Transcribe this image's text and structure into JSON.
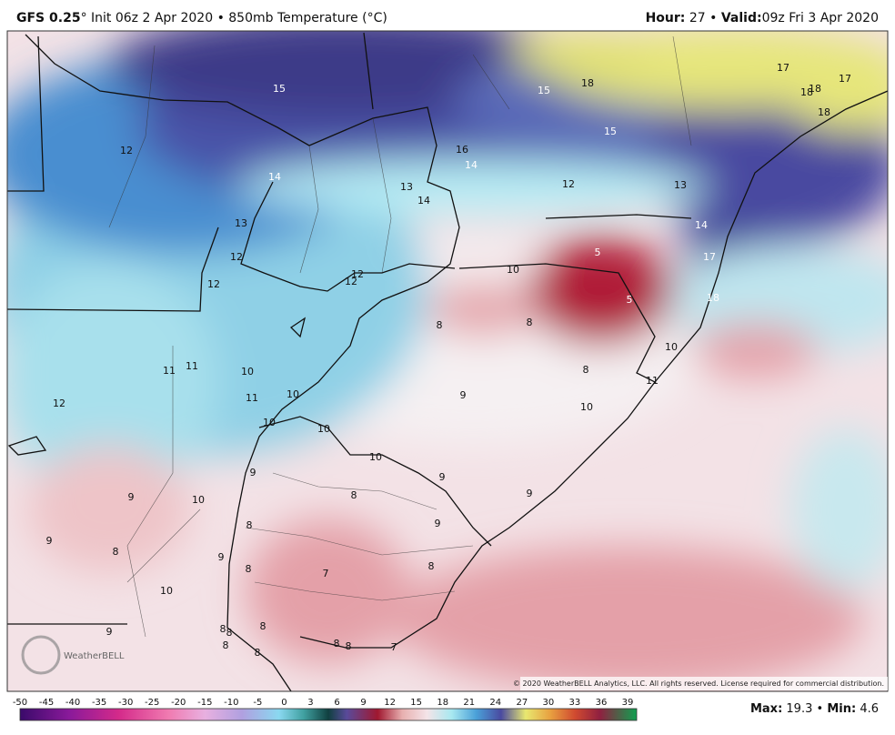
{
  "header": {
    "model": "GFS 0.25",
    "run_info": "° Init 06z 2 Apr 2020 • 850mb Temperature (°C)",
    "hour_label": "Hour:",
    "hour": 27,
    "separator": "•",
    "valid_label": "Valid:",
    "valid": "09z Fri 3 Apr 2020"
  },
  "map_labels": [
    15,
    15,
    18,
    17,
    18,
    18,
    17,
    18,
    15,
    12,
    16,
    14,
    14,
    13,
    12,
    13,
    14,
    13,
    14,
    12,
    5,
    17,
    10,
    12,
    12,
    12,
    5,
    18,
    8,
    8,
    10,
    11,
    11,
    10,
    8,
    11,
    11,
    10,
    9,
    12,
    10,
    10,
    10,
    10,
    9,
    9,
    9,
    10,
    8,
    9,
    8,
    9,
    9,
    8,
    9,
    8,
    7,
    8,
    10,
    9,
    8,
    8,
    8,
    8,
    8,
    8,
    7,
    8
  ],
  "colorbar_ticks": [
    -50,
    -45,
    -40,
    -35,
    -30,
    -25,
    -20,
    -15,
    -10,
    -5,
    0,
    3,
    6,
    9,
    12,
    15,
    18,
    21,
    24,
    27,
    30,
    33,
    36,
    39
  ],
  "stats": {
    "max_label": "Max:",
    "max": 19.3,
    "min_label": "Min:",
    "min": 4.6
  },
  "copyright": "© 2020 WeatherBELL Analytics, LLC. All rights reserved. License required for commercial distribution.",
  "logo": "WeatherBELL"
}
